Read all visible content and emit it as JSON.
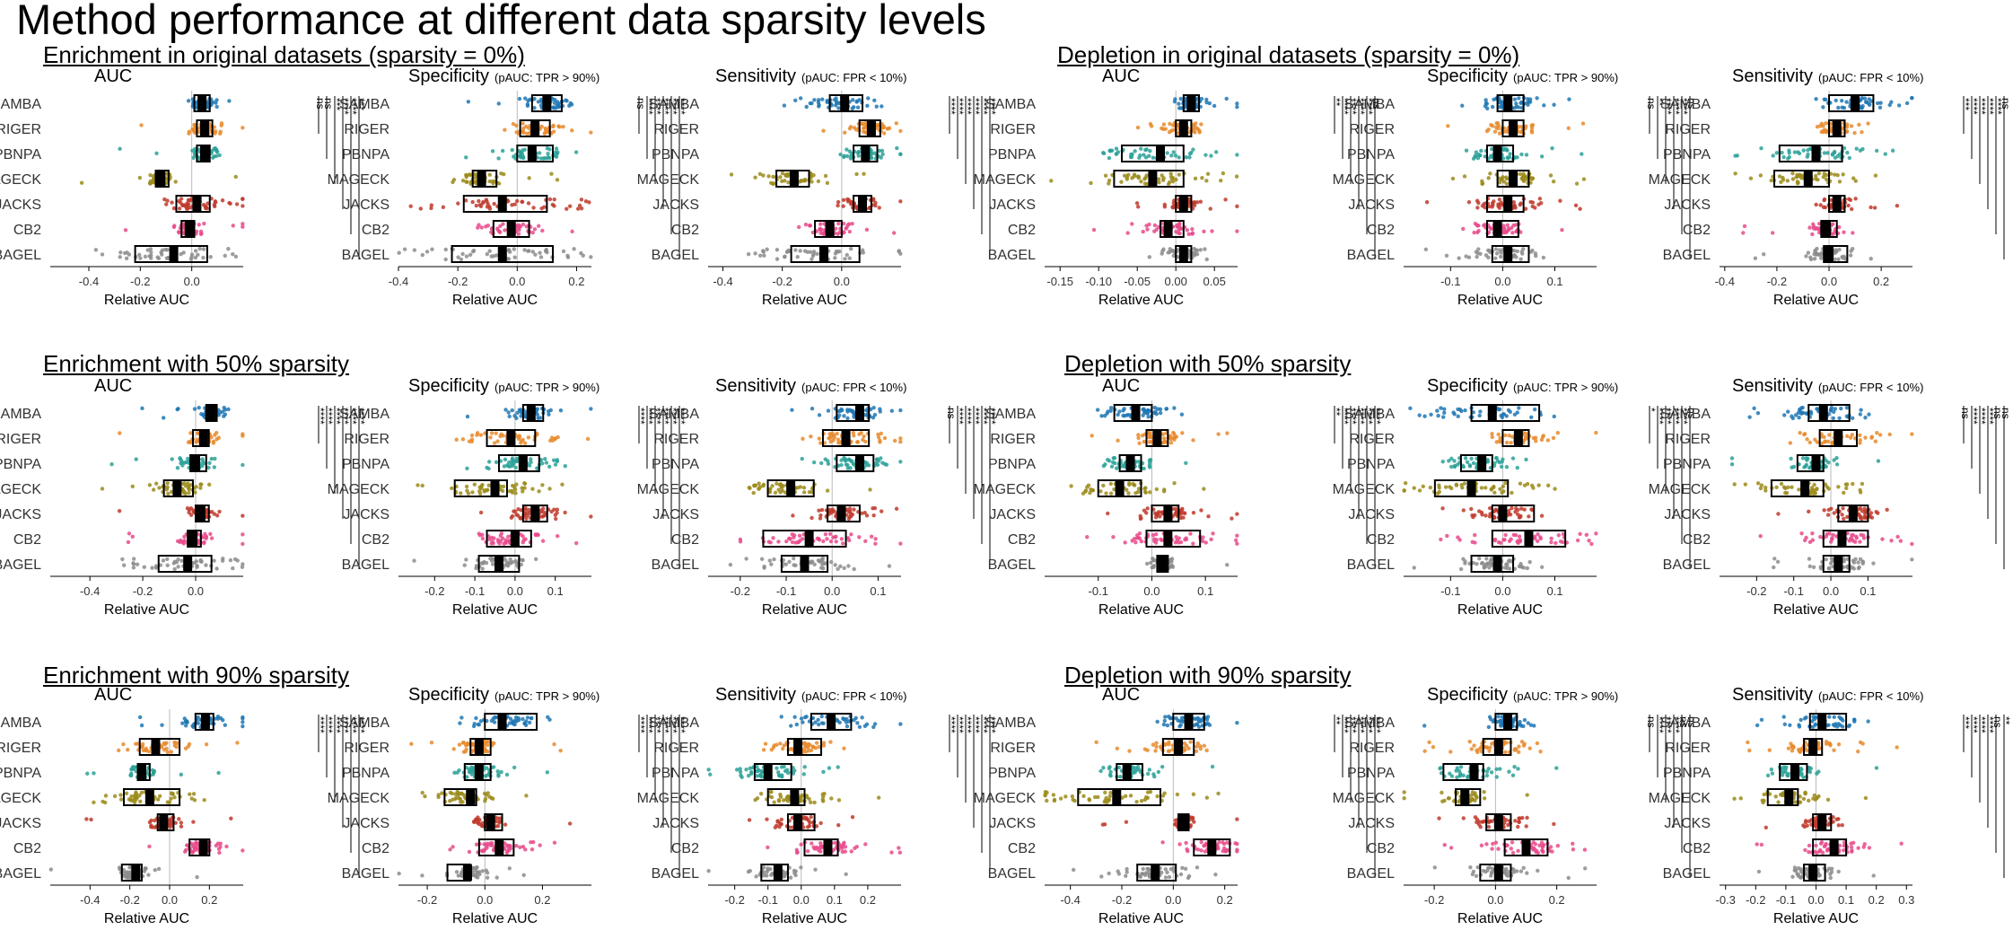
{
  "title": "Method performance at different data sparsity levels",
  "methods": [
    "SAMBA",
    "RIGER",
    "PBNPA",
    "MAGECK",
    "JACKS",
    "CB2",
    "BAGEL"
  ],
  "colors": {
    "SAMBA": "#1f77b4",
    "RIGER": "#e8892b",
    "PBNPA": "#2aa198",
    "MAGECK": "#9b8b1a",
    "JACKS": "#c0392b",
    "CB2": "#e84a8b",
    "BAGEL": "#8c8c8c"
  },
  "groups": [
    {
      "title": "Enrichment in original datasets (sparsity = 0%)"
    },
    {
      "title": "Depletion in original datasets (sparsity = 0%)"
    },
    {
      "title": "Enrichment with 50% sparsity"
    },
    {
      "title": "Depletion with 50% sparsity"
    },
    {
      "title": "Enrichment with 90% sparsity"
    },
    {
      "title": "Depletion with 90% sparsity"
    }
  ],
  "chart_data": [
    {
      "type": "scatter",
      "title": "AUC",
      "subtitle": "",
      "xlabel": "Relative AUC",
      "xlim": [
        -0.55,
        0.2
      ],
      "ticks": [
        -0.4,
        -0.2,
        0.0
      ],
      "tick_labels": [
        "-0.4",
        "-0.2",
        "0.0"
      ],
      "medians": [
        0.04,
        0.05,
        0.05,
        -0.12,
        0.02,
        -0.01,
        -0.07
      ],
      "boxes": [
        [
          0.01,
          0.07
        ],
        [
          0.02,
          0.08
        ],
        [
          0.02,
          0.07
        ],
        [
          -0.14,
          -0.09
        ],
        [
          -0.06,
          0.07
        ],
        [
          -0.04,
          0.01
        ],
        [
          -0.22,
          0.06
        ]
      ],
      "sig": [
        "ns",
        "ns",
        "***",
        "****",
        "****",
        "***"
      ]
    },
    {
      "type": "scatter",
      "title": "Specificity",
      "subtitle": "(pAUC: TPR > 90%)",
      "xlabel": "Relative AUC",
      "xlim": [
        -0.4,
        0.25
      ],
      "ticks": [
        -0.4,
        -0.2,
        0.0,
        0.2
      ],
      "tick_labels": [
        "-0.4",
        "-0.2",
        "0.0",
        "0.2"
      ],
      "medians": [
        0.1,
        0.06,
        0.05,
        -0.12,
        -0.05,
        -0.02,
        -0.05
      ],
      "boxes": [
        [
          0.05,
          0.15
        ],
        [
          0.01,
          0.11
        ],
        [
          0.0,
          0.12
        ],
        [
          -0.15,
          -0.07
        ],
        [
          -0.18,
          0.1
        ],
        [
          -0.08,
          0.04
        ],
        [
          -0.22,
          0.12
        ]
      ],
      "sig": [
        "ns",
        "****",
        "****",
        "****",
        "****",
        "****"
      ]
    },
    {
      "type": "scatter",
      "title": "Sensitivity",
      "subtitle": "(pAUC: FPR < 10%)",
      "xlabel": "Relative AUC",
      "xlim": [
        -0.45,
        0.2
      ],
      "ticks": [
        -0.4,
        -0.2,
        0.0
      ],
      "tick_labels": [
        "-0.4",
        "-0.2",
        "0.0"
      ],
      "medians": [
        0.01,
        0.1,
        0.08,
        -0.16,
        0.07,
        -0.04,
        -0.06
      ],
      "boxes": [
        [
          -0.04,
          0.07
        ],
        [
          0.06,
          0.13
        ],
        [
          0.04,
          0.12
        ],
        [
          -0.22,
          -0.11
        ],
        [
          0.04,
          0.1
        ],
        [
          -0.09,
          0.0
        ],
        [
          -0.17,
          0.06
        ]
      ],
      "sig": [
        "****",
        "****",
        "****",
        "****",
        "****",
        "****"
      ]
    },
    {
      "type": "scatter",
      "title": "AUC",
      "subtitle": "",
      "xlabel": "Relative AUC",
      "xlim": [
        -0.17,
        0.08
      ],
      "ticks": [
        -0.15,
        -0.1,
        -0.05,
        0.0,
        0.05
      ],
      "tick_labels": [
        "-0.15",
        "-0.10",
        "-0.05",
        "0.00",
        "0.05"
      ],
      "medians": [
        0.02,
        0.01,
        -0.02,
        -0.03,
        0.01,
        -0.01,
        0.01
      ],
      "boxes": [
        [
          0.01,
          0.03
        ],
        [
          -0.0,
          0.02
        ],
        [
          -0.07,
          0.01
        ],
        [
          -0.08,
          0.01
        ],
        [
          -0.0,
          0.02
        ],
        [
          -0.02,
          0.01
        ],
        [
          0.0,
          0.02
        ]
      ],
      "sig": [
        "**",
        "****",
        "****",
        "****",
        "****",
        "ns"
      ]
    },
    {
      "type": "scatter",
      "title": "Specificity",
      "subtitle": "(pAUC: TPR > 90%)",
      "xlabel": "Relative AUC",
      "xlim": [
        -0.19,
        0.18
      ],
      "ticks": [
        -0.1,
        0.0,
        0.1
      ],
      "tick_labels": [
        "-0.1",
        "0.0",
        "0.1"
      ],
      "medians": [
        0.01,
        0.02,
        -0.01,
        0.02,
        0.01,
        -0.01,
        0.01
      ],
      "boxes": [
        [
          -0.01,
          0.04
        ],
        [
          -0.0,
          0.04
        ],
        [
          -0.03,
          0.02
        ],
        [
          -0.01,
          0.05
        ],
        [
          -0.03,
          0.04
        ],
        [
          -0.03,
          0.03
        ],
        [
          -0.02,
          0.05
        ]
      ],
      "sig": [
        "ns",
        "**",
        "****",
        "****",
        "****",
        "ns"
      ]
    },
    {
      "type": "scatter",
      "title": "Sensitivity",
      "subtitle": "(pAUC: FPR < 10%)",
      "xlabel": "Relative AUC",
      "xlim": [
        -0.42,
        0.32
      ],
      "ticks": [
        -0.4,
        -0.2,
        0.0,
        0.2
      ],
      "tick_labels": [
        "-0.4",
        "-0.2",
        "0.0",
        "0.2"
      ],
      "medians": [
        0.1,
        0.03,
        -0.05,
        -0.08,
        0.03,
        -0.01,
        0.0
      ],
      "boxes": [
        [
          0.0,
          0.17
        ],
        [
          -0.0,
          0.06
        ],
        [
          -0.19,
          0.05
        ],
        [
          -0.21,
          0.0
        ],
        [
          0.0,
          0.06
        ],
        [
          -0.03,
          0.03
        ],
        [
          -0.02,
          0.07
        ]
      ],
      "sig": [
        "***",
        "****",
        "****",
        "****",
        "****",
        "ns"
      ]
    },
    {
      "type": "scatter",
      "title": "AUC",
      "subtitle": "",
      "xlabel": "Relative AUC",
      "xlim": [
        -0.55,
        0.18
      ],
      "ticks": [
        -0.4,
        -0.2,
        0.0
      ],
      "tick_labels": [
        "-0.4",
        "-0.2",
        "0.0"
      ],
      "medians": [
        0.06,
        0.03,
        0.0,
        -0.07,
        0.02,
        -0.01,
        -0.03
      ],
      "boxes": [
        [
          0.04,
          0.08
        ],
        [
          -0.01,
          0.05
        ],
        [
          -0.02,
          0.04
        ],
        [
          -0.12,
          -0.01
        ],
        [
          0.0,
          0.05
        ],
        [
          -0.03,
          0.02
        ],
        [
          -0.14,
          0.06
        ]
      ],
      "sig": [
        "****",
        "****",
        "****",
        "****",
        "****",
        "****"
      ]
    },
    {
      "type": "scatter",
      "title": "Specificity",
      "subtitle": "(pAUC: TPR > 90%)",
      "xlabel": "Relative AUC",
      "xlim": [
        -0.29,
        0.19
      ],
      "ticks": [
        -0.2,
        -0.1,
        0.0,
        0.1
      ],
      "tick_labels": [
        "-0.2",
        "-0.1",
        "0.0",
        "0.1"
      ],
      "medians": [
        0.04,
        -0.01,
        0.02,
        -0.05,
        0.05,
        -0.0,
        -0.04
      ],
      "boxes": [
        [
          0.02,
          0.07
        ],
        [
          -0.07,
          0.05
        ],
        [
          -0.04,
          0.06
        ],
        [
          -0.15,
          -0.02
        ],
        [
          0.02,
          0.08
        ],
        [
          -0.07,
          0.04
        ],
        [
          -0.09,
          0.01
        ]
      ],
      "sig": [
        "****",
        "****",
        "****",
        "****",
        "****",
        "****"
      ]
    },
    {
      "type": "scatter",
      "title": "Sensitivity",
      "subtitle": "(pAUC: FPR < 10%)",
      "xlabel": "Relative AUC",
      "xlim": [
        -0.27,
        0.15
      ],
      "ticks": [
        -0.2,
        -0.1,
        0.0,
        0.1
      ],
      "tick_labels": [
        "-0.2",
        "-0.1",
        "0.0",
        "0.1"
      ],
      "medians": [
        0.06,
        0.03,
        0.06,
        -0.09,
        0.02,
        -0.05,
        -0.06
      ],
      "boxes": [
        [
          0.01,
          0.08
        ],
        [
          -0.02,
          0.08
        ],
        [
          0.01,
          0.09
        ],
        [
          -0.14,
          -0.04
        ],
        [
          -0.01,
          0.06
        ],
        [
          -0.15,
          0.03
        ],
        [
          -0.11,
          -0.01
        ]
      ],
      "sig": [
        "ns",
        "****",
        "****",
        "****",
        "****",
        "****"
      ]
    },
    {
      "type": "scatter",
      "title": "AUC",
      "subtitle": "",
      "xlabel": "Relative AUC",
      "xlim": [
        -0.2,
        0.16
      ],
      "ticks": [
        -0.1,
        0.0,
        0.1
      ],
      "tick_labels": [
        "-0.1",
        "0.0",
        "0.1"
      ],
      "medians": [
        -0.03,
        0.01,
        -0.04,
        -0.06,
        0.03,
        0.03,
        0.02
      ],
      "boxes": [
        [
          -0.07,
          0.0
        ],
        [
          -0.01,
          0.03
        ],
        [
          -0.06,
          -0.02
        ],
        [
          -0.1,
          -0.02
        ],
        [
          0.0,
          0.05
        ],
        [
          -0.01,
          0.09
        ],
        [
          0.01,
          0.03
        ]
      ],
      "sig": [
        "**",
        "****",
        "****",
        "****",
        "****",
        "****"
      ]
    },
    {
      "type": "scatter",
      "title": "Specificity",
      "subtitle": "(pAUC: TPR > 90%)",
      "xlabel": "Relative AUC",
      "xlim": [
        -0.19,
        0.18
      ],
      "ticks": [
        -0.1,
        0.0,
        0.1
      ],
      "tick_labels": [
        "-0.1",
        "0.0",
        "0.1"
      ],
      "medians": [
        -0.02,
        0.03,
        -0.04,
        -0.06,
        0.0,
        0.05,
        -0.01
      ],
      "boxes": [
        [
          -0.06,
          0.07
        ],
        [
          -0.0,
          0.05
        ],
        [
          -0.08,
          -0.02
        ],
        [
          -0.13,
          0.01
        ],
        [
          -0.02,
          0.06
        ],
        [
          -0.02,
          0.12
        ],
        [
          -0.06,
          0.02
        ]
      ],
      "sig": [
        "*",
        "****",
        "****",
        "****",
        "****",
        "ns"
      ]
    },
    {
      "type": "scatter",
      "title": "Sensitivity",
      "subtitle": "(pAUC: FPR < 10%)",
      "xlabel": "Relative AUC",
      "xlim": [
        -0.3,
        0.22
      ],
      "ticks": [
        -0.2,
        -0.1,
        0.0,
        0.1
      ],
      "tick_labels": [
        "-0.2",
        "-0.1",
        "0.0",
        "0.1"
      ],
      "medians": [
        -0.02,
        0.02,
        -0.04,
        -0.07,
        0.06,
        0.03,
        0.02
      ],
      "boxes": [
        [
          -0.06,
          0.05
        ],
        [
          -0.03,
          0.07
        ],
        [
          -0.09,
          -0.02
        ],
        [
          -0.16,
          -0.02
        ],
        [
          0.02,
          0.1
        ],
        [
          -0.02,
          0.1
        ],
        [
          -0.02,
          0.05
        ]
      ],
      "sig": [
        "ns",
        "****",
        "****",
        "****",
        "ns",
        "ns"
      ]
    },
    {
      "type": "scatter",
      "title": "AUC",
      "subtitle": "",
      "xlabel": "Relative AUC",
      "xlim": [
        -0.6,
        0.37
      ],
      "ticks": [
        -0.4,
        -0.2,
        0.0,
        0.2
      ],
      "tick_labels": [
        "-0.4",
        "-0.2",
        "0.0",
        "0.2"
      ],
      "medians": [
        0.18,
        -0.07,
        -0.14,
        -0.1,
        -0.03,
        0.17,
        -0.17
      ],
      "boxes": [
        [
          0.13,
          0.22
        ],
        [
          -0.15,
          0.05
        ],
        [
          -0.16,
          -0.1
        ],
        [
          -0.23,
          0.05
        ],
        [
          -0.06,
          0.02
        ],
        [
          0.1,
          0.2
        ],
        [
          -0.24,
          -0.14
        ]
      ],
      "sig": [
        "****",
        "****",
        "****",
        "****",
        "****",
        "****"
      ]
    },
    {
      "type": "scatter",
      "title": "Specificity",
      "subtitle": "(pAUC: TPR > 90%)",
      "xlabel": "Relative AUC",
      "xlim": [
        -0.3,
        0.37
      ],
      "ticks": [
        -0.2,
        0.0,
        0.2
      ],
      "tick_labels": [
        "-0.2",
        "0.0",
        "0.2"
      ],
      "medians": [
        0.06,
        -0.02,
        -0.02,
        -0.05,
        0.02,
        0.05,
        -0.06
      ],
      "boxes": [
        [
          -0.0,
          0.18
        ],
        [
          -0.05,
          0.02
        ],
        [
          -0.07,
          0.02
        ],
        [
          -0.14,
          -0.03
        ],
        [
          0.0,
          0.06
        ],
        [
          -0.02,
          0.1
        ],
        [
          -0.13,
          -0.05
        ]
      ],
      "sig": [
        "****",
        "****",
        "****",
        "****",
        "****",
        "****"
      ]
    },
    {
      "type": "scatter",
      "title": "Sensitivity",
      "subtitle": "(pAUC: FPR < 10%)",
      "xlabel": "Relative AUC",
      "xlim": [
        -0.28,
        0.3
      ],
      "ticks": [
        -0.2,
        -0.1,
        0.0,
        0.1,
        0.2
      ],
      "tick_labels": [
        "-0.2",
        "-0.1",
        "0.0",
        "0.1",
        "0.2"
      ],
      "medians": [
        0.09,
        -0.01,
        -0.1,
        -0.02,
        -0.01,
        0.08,
        -0.07
      ],
      "boxes": [
        [
          0.03,
          0.15
        ],
        [
          -0.04,
          0.06
        ],
        [
          -0.14,
          -0.03
        ],
        [
          -0.1,
          0.01
        ],
        [
          -0.04,
          0.04
        ],
        [
          0.01,
          0.11
        ],
        [
          -0.12,
          -0.04
        ]
      ],
      "sig": [
        "****",
        "****",
        "****",
        "****",
        "****",
        "****"
      ]
    },
    {
      "type": "scatter",
      "title": "AUC",
      "subtitle": "",
      "xlabel": "Relative AUC",
      "xlim": [
        -0.5,
        0.25
      ],
      "ticks": [
        -0.4,
        -0.2,
        0.0,
        0.2
      ],
      "tick_labels": [
        "-0.4",
        "-0.2",
        "0.0",
        "0.2"
      ],
      "medians": [
        0.06,
        0.02,
        -0.18,
        -0.22,
        0.04,
        0.15,
        -0.07
      ],
      "boxes": [
        [
          0.0,
          0.12
        ],
        [
          -0.04,
          0.08
        ],
        [
          -0.22,
          -0.12
        ],
        [
          -0.37,
          -0.05
        ],
        [
          0.02,
          0.06
        ],
        [
          0.08,
          0.22
        ],
        [
          -0.14,
          0.01
        ]
      ],
      "sig": [
        "**",
        "****",
        "****",
        "****",
        "****",
        "****"
      ]
    },
    {
      "type": "scatter",
      "title": "Specificity",
      "subtitle": "(pAUC: TPR > 90%)",
      "xlabel": "Relative AUC",
      "xlim": [
        -0.3,
        0.33
      ],
      "ticks": [
        -0.2,
        0.0,
        0.2
      ],
      "tick_labels": [
        "-0.2",
        "0.0",
        "0.2"
      ],
      "medians": [
        0.04,
        0.01,
        -0.07,
        -0.1,
        0.01,
        0.1,
        0.01
      ],
      "boxes": [
        [
          0.0,
          0.07
        ],
        [
          -0.04,
          0.05
        ],
        [
          -0.17,
          -0.04
        ],
        [
          -0.13,
          -0.05
        ],
        [
          -0.03,
          0.05
        ],
        [
          0.03,
          0.17
        ],
        [
          -0.05,
          0.05
        ]
      ],
      "sig": [
        "ns",
        "****",
        "****",
        "****",
        "ns",
        "ns"
      ]
    },
    {
      "type": "scatter",
      "title": "Sensitivity",
      "subtitle": "(pAUC: FPR < 10%)",
      "xlabel": "Relative AUC",
      "xlim": [
        -0.32,
        0.32
      ],
      "ticks": [
        -0.3,
        -0.2,
        -0.1,
        0.0,
        0.1,
        0.2,
        0.3
      ],
      "tick_labels": [
        "-0.3",
        "-0.2",
        "-0.1",
        "0.0",
        "0.1",
        "0.2",
        "0.3"
      ],
      "medians": [
        0.02,
        -0.01,
        -0.07,
        -0.09,
        0.02,
        0.06,
        -0.01
      ],
      "boxes": [
        [
          -0.02,
          0.1
        ],
        [
          -0.04,
          0.02
        ],
        [
          -0.12,
          -0.03
        ],
        [
          -0.16,
          -0.06
        ],
        [
          -0.01,
          0.05
        ],
        [
          -0.01,
          0.1
        ],
        [
          -0.04,
          0.03
        ]
      ],
      "sig": [
        "***",
        "****",
        "****",
        "****",
        "ns",
        "**"
      ]
    }
  ]
}
